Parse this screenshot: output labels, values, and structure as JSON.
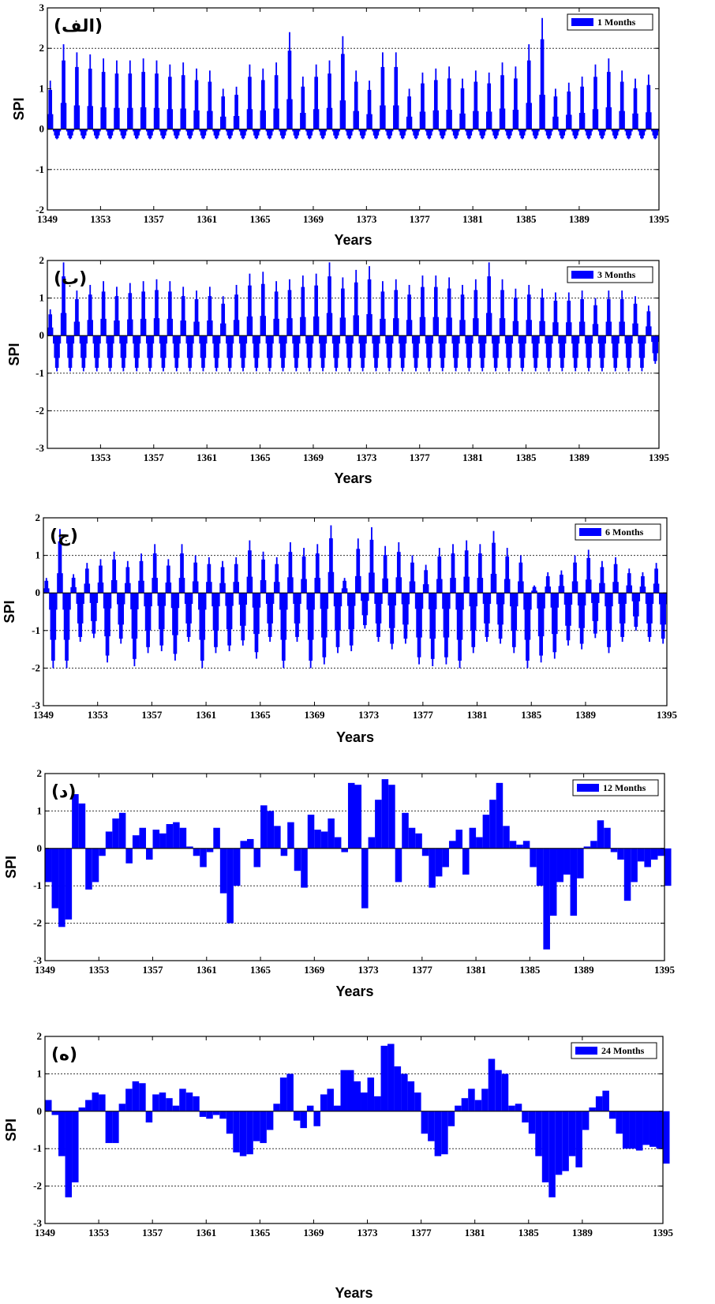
{
  "figure": {
    "bar_color": "#0000ff",
    "axis_color": "#000000",
    "grid_style": "dotted"
  },
  "chart_data": [
    {
      "type": "bar",
      "panel_tag": "(الف)",
      "legend": "1 Months",
      "legend_position": "top-right",
      "ylabel": "SPI",
      "xlabel": "Years",
      "xlim": [
        1349,
        1395
      ],
      "ylim": [
        -2,
        3
      ],
      "yticks": [
        -2,
        -1,
        0,
        1,
        2,
        3
      ],
      "xticks": [
        1349,
        1353,
        1357,
        1361,
        1365,
        1369,
        1373,
        1377,
        1381,
        1385,
        1389,
        1395
      ],
      "grid_y": [
        -1,
        2
      ],
      "peaks": [
        1.2,
        2.1,
        1.9,
        1.85,
        1.75,
        1.7,
        1.7,
        1.75,
        1.7,
        1.6,
        1.65,
        1.5,
        1.45,
        1.0,
        1.05,
        1.6,
        1.5,
        1.65,
        2.4,
        1.3,
        1.6,
        1.7,
        2.3,
        1.45,
        1.2,
        1.9,
        1.9,
        1.0,
        1.4,
        1.5,
        1.55,
        1.25,
        1.45,
        1.4,
        1.65,
        1.55,
        2.1,
        2.75,
        1.0,
        1.15,
        1.3,
        1.6,
        1.75,
        1.45,
        1.25,
        1.35
      ],
      "troughs": [
        -0.25,
        -0.25,
        -0.25,
        -0.25,
        -0.25,
        -0.25,
        -0.25,
        -0.25,
        -0.25,
        -0.25,
        -0.25,
        -0.25,
        -0.25,
        -0.25,
        -0.25,
        -0.25,
        -0.25,
        -0.25,
        -0.25,
        -0.25,
        -0.25,
        -0.25,
        -0.25,
        -0.25,
        -0.25,
        -0.25,
        -0.25,
        -0.25,
        -0.25,
        -0.25,
        -0.25,
        -0.25,
        -0.25,
        -0.25,
        -0.25,
        -0.25,
        -0.25,
        -0.25,
        -0.25,
        -0.25,
        -0.25,
        -0.25,
        -0.25,
        -0.25,
        -0.25,
        -0.25
      ]
    },
    {
      "type": "bar",
      "panel_tag": "(ب)",
      "legend": "3 Months",
      "legend_position": "top-right",
      "ylabel": "SPI",
      "xlabel": "Years",
      "xlim": [
        1349,
        1395
      ],
      "ylim": [
        -3,
        2
      ],
      "yticks": [
        -3,
        -2,
        -1,
        0,
        1,
        2
      ],
      "xticks": [
        1353,
        1357,
        1361,
        1365,
        1369,
        1373,
        1377,
        1381,
        1385,
        1389,
        1395
      ],
      "grid_y": [
        -2,
        -1,
        1
      ],
      "peaks": [
        0.7,
        1.95,
        1.2,
        1.35,
        1.45,
        1.3,
        1.4,
        1.45,
        1.5,
        1.45,
        1.3,
        1.2,
        1.3,
        1.05,
        1.35,
        1.65,
        1.7,
        1.45,
        1.5,
        1.6,
        1.65,
        1.95,
        1.55,
        1.75,
        1.85,
        1.45,
        1.5,
        1.35,
        1.6,
        1.6,
        1.55,
        1.35,
        1.5,
        1.95,
        1.5,
        1.25,
        1.35,
        1.25,
        1.15,
        1.15,
        1.2,
        1.0,
        1.2,
        1.2,
        1.05,
        0.8
      ],
      "troughs": [
        -0.95,
        -0.95,
        -0.95,
        -0.95,
        -0.95,
        -0.95,
        -0.95,
        -0.95,
        -0.95,
        -0.95,
        -0.95,
        -0.95,
        -0.95,
        -0.95,
        -0.95,
        -0.95,
        -0.95,
        -0.95,
        -0.95,
        -0.95,
        -0.95,
        -0.95,
        -0.95,
        -0.95,
        -0.95,
        -0.95,
        -0.95,
        -0.95,
        -0.95,
        -0.95,
        -0.95,
        -0.95,
        -0.95,
        -0.95,
        -0.95,
        -0.95,
        -0.95,
        -0.95,
        -0.95,
        -0.95,
        -0.95,
        -0.95,
        -0.95,
        -0.95,
        -0.95,
        -0.75
      ]
    },
    {
      "type": "bar",
      "panel_tag": "(ج)",
      "legend": "6 Months",
      "legend_position": "top-right",
      "ylabel": "SPI",
      "xlabel": "Years",
      "xlim": [
        1349,
        1395
      ],
      "ylim": [
        -3,
        2
      ],
      "yticks": [
        -3,
        -2,
        -1,
        0,
        1,
        2
      ],
      "xticks": [
        1349,
        1353,
        1357,
        1361,
        1365,
        1369,
        1373,
        1377,
        1381,
        1385,
        1389,
        1395
      ],
      "grid_y": [
        -2,
        -1,
        1
      ],
      "peaks": [
        0.4,
        1.7,
        0.5,
        0.8,
        0.9,
        1.1,
        0.85,
        1.05,
        1.3,
        0.9,
        1.3,
        1.0,
        0.95,
        0.85,
        0.95,
        1.4,
        1.1,
        0.95,
        1.35,
        1.2,
        1.3,
        1.8,
        0.4,
        1.45,
        1.75,
        1.25,
        1.35,
        1.0,
        0.75,
        1.2,
        1.3,
        1.4,
        1.3,
        1.65,
        1.2,
        1.0,
        0.2,
        0.55,
        0.6,
        1.0,
        1.15,
        0.85,
        0.95,
        0.65,
        0.55,
        0.8
      ],
      "troughs": [
        -2.0,
        -2.0,
        -1.3,
        -1.2,
        -1.85,
        -1.35,
        -1.95,
        -1.6,
        -1.55,
        -1.8,
        -1.3,
        -2.0,
        -1.6,
        -1.55,
        -1.4,
        -1.75,
        -1.3,
        -2.0,
        -1.3,
        -2.0,
        -1.9,
        -1.6,
        -1.55,
        -0.95,
        -1.3,
        -1.5,
        -1.35,
        -1.9,
        -1.95,
        -1.9,
        -2.0,
        -1.6,
        -1.3,
        -1.35,
        -1.6,
        -2.0,
        -1.85,
        -1.75,
        -1.4,
        -1.5,
        -1.2,
        -1.6,
        -1.3,
        -1.0,
        -1.3,
        -1.35
      ]
    },
    {
      "type": "bar",
      "panel_tag": "(د)",
      "legend": "12 Months",
      "legend_position": "top-right",
      "ylabel": "SPI",
      "xlabel": "Years",
      "xlim": [
        1349,
        1395
      ],
      "ylim": [
        -3,
        2
      ],
      "yticks": [
        -3,
        -2,
        -1,
        0,
        1,
        2
      ],
      "xticks": [
        1349,
        1353,
        1357,
        1361,
        1365,
        1369,
        1373,
        1377,
        1381,
        1385,
        1389,
        1395
      ],
      "grid_y": [
        -2,
        -1,
        1
      ],
      "years": [
        1349.0,
        1349.5,
        1350.0,
        1350.5,
        1351.0,
        1351.5,
        1352.0,
        1352.5,
        1353.0,
        1353.5,
        1354.0,
        1354.5,
        1355.0,
        1355.5,
        1356.0,
        1356.5,
        1357.0,
        1357.5,
        1358.0,
        1358.5,
        1359.0,
        1359.5,
        1360.0,
        1360.5,
        1361.0,
        1361.5,
        1362.0,
        1362.5,
        1363.0,
        1363.5,
        1364.0,
        1364.5,
        1365.0,
        1365.5,
        1366.0,
        1366.5,
        1367.0,
        1367.5,
        1368.0,
        1368.5,
        1369.0,
        1369.5,
        1370.0,
        1370.5,
        1371.0,
        1371.5,
        1372.0,
        1372.5,
        1373.0,
        1373.5,
        1374.0,
        1374.5,
        1375.0,
        1375.5,
        1376.0,
        1376.5,
        1377.0,
        1377.5,
        1378.0,
        1378.5,
        1379.0,
        1379.5,
        1380.0,
        1380.5,
        1381.0,
        1381.5,
        1382.0,
        1382.5,
        1383.0,
        1383.5,
        1384.0,
        1384.5,
        1385.0,
        1385.5,
        1386.0,
        1386.5,
        1387.0,
        1387.5,
        1388.0,
        1388.5,
        1389.0,
        1389.5,
        1390.0,
        1390.5,
        1391.0,
        1391.5,
        1392.0,
        1392.5,
        1393.0,
        1393.5,
        1394.0,
        1394.5,
        1395.0
      ],
      "values": [
        -0.9,
        -1.6,
        -2.1,
        -1.9,
        1.45,
        1.2,
        -1.1,
        -0.9,
        -0.2,
        0.45,
        0.8,
        0.95,
        -0.4,
        0.35,
        0.55,
        -0.3,
        0.5,
        0.4,
        0.65,
        0.7,
        0.55,
        0.05,
        -0.2,
        -0.5,
        -0.1,
        0.55,
        -1.2,
        -2.0,
        -1.0,
        0.2,
        0.25,
        -0.5,
        1.15,
        1.0,
        0.6,
        -0.2,
        0.7,
        -0.6,
        -1.05,
        0.9,
        0.5,
        0.45,
        0.8,
        0.3,
        -0.1,
        1.75,
        1.7,
        -1.6,
        0.3,
        1.3,
        1.85,
        1.7,
        -0.9,
        0.95,
        0.55,
        0.4,
        -0.2,
        -1.05,
        -0.75,
        -0.5,
        0.2,
        0.5,
        -0.7,
        0.55,
        0.3,
        0.9,
        1.3,
        1.75,
        0.6,
        0.2,
        0.1,
        0.2,
        -0.5,
        -1.0,
        -2.7,
        -1.8,
        -0.9,
        -0.7,
        -1.8,
        -0.8,
        0.05,
        0.2,
        0.75,
        0.55,
        -0.1,
        -0.3,
        -1.4,
        -0.9,
        -0.35,
        -0.5,
        -0.3,
        -0.2,
        -1.0
      ]
    },
    {
      "type": "bar",
      "panel_tag": "(ه)",
      "legend": "24 Months",
      "legend_position": "top-right",
      "ylabel": "SPI",
      "xlabel": "Years",
      "xlim": [
        1349,
        1395
      ],
      "ylim": [
        -3,
        2
      ],
      "yticks": [
        -3,
        -2,
        -1,
        0,
        1,
        2
      ],
      "xticks": [
        1349,
        1353,
        1357,
        1361,
        1365,
        1369,
        1373,
        1377,
        1381,
        1385,
        1389,
        1395
      ],
      "grid_y": [
        -2,
        -1,
        1
      ],
      "years": [
        1349.0,
        1349.5,
        1350.0,
        1350.5,
        1351.0,
        1351.5,
        1352.0,
        1352.5,
        1353.0,
        1353.5,
        1354.0,
        1354.5,
        1355.0,
        1355.5,
        1356.0,
        1356.5,
        1357.0,
        1357.5,
        1358.0,
        1358.5,
        1359.0,
        1359.5,
        1360.0,
        1360.5,
        1361.0,
        1361.5,
        1362.0,
        1362.5,
        1363.0,
        1363.5,
        1364.0,
        1364.5,
        1365.0,
        1365.5,
        1366.0,
        1366.5,
        1367.0,
        1367.5,
        1368.0,
        1368.5,
        1369.0,
        1369.5,
        1370.0,
        1370.5,
        1371.0,
        1371.5,
        1372.0,
        1372.5,
        1373.0,
        1373.5,
        1374.0,
        1374.5,
        1375.0,
        1375.5,
        1376.0,
        1376.5,
        1377.0,
        1377.5,
        1378.0,
        1378.5,
        1379.0,
        1379.5,
        1380.0,
        1380.5,
        1381.0,
        1381.5,
        1382.0,
        1382.5,
        1383.0,
        1383.5,
        1384.0,
        1384.5,
        1385.0,
        1385.5,
        1386.0,
        1386.5,
        1387.0,
        1387.5,
        1388.0,
        1388.5,
        1389.0,
        1389.5,
        1390.0,
        1390.5,
        1391.0,
        1391.5,
        1392.0,
        1392.5,
        1393.0,
        1393.5,
        1394.0,
        1394.5,
        1395.0
      ],
      "values": [
        0.3,
        -0.1,
        -1.2,
        -2.3,
        -1.9,
        0.1,
        0.3,
        0.5,
        0.45,
        -0.85,
        -0.85,
        0.2,
        0.6,
        0.8,
        0.75,
        -0.3,
        0.45,
        0.5,
        0.35,
        0.15,
        0.6,
        0.5,
        0.4,
        -0.15,
        -0.2,
        -0.1,
        -0.2,
        -0.6,
        -1.1,
        -1.2,
        -1.15,
        -0.8,
        -0.85,
        -0.5,
        0.2,
        0.9,
        1.0,
        -0.25,
        -0.45,
        0.15,
        -0.4,
        0.45,
        0.6,
        0.15,
        1.1,
        1.1,
        0.8,
        0.5,
        0.9,
        0.4,
        1.75,
        1.8,
        1.2,
        1.0,
        0.8,
        0.5,
        -0.6,
        -0.8,
        -1.2,
        -1.15,
        -0.4,
        0.15,
        0.35,
        0.6,
        0.3,
        0.6,
        1.4,
        1.1,
        1.0,
        0.15,
        0.2,
        -0.3,
        -0.6,
        -1.2,
        -1.9,
        -2.3,
        -1.7,
        -1.6,
        -1.2,
        -1.5,
        -0.5,
        0.1,
        0.4,
        0.55,
        -0.2,
        -0.6,
        -1.0,
        -1.0,
        -1.05,
        -0.9,
        -0.95,
        -1.0,
        -1.4
      ]
    }
  ]
}
